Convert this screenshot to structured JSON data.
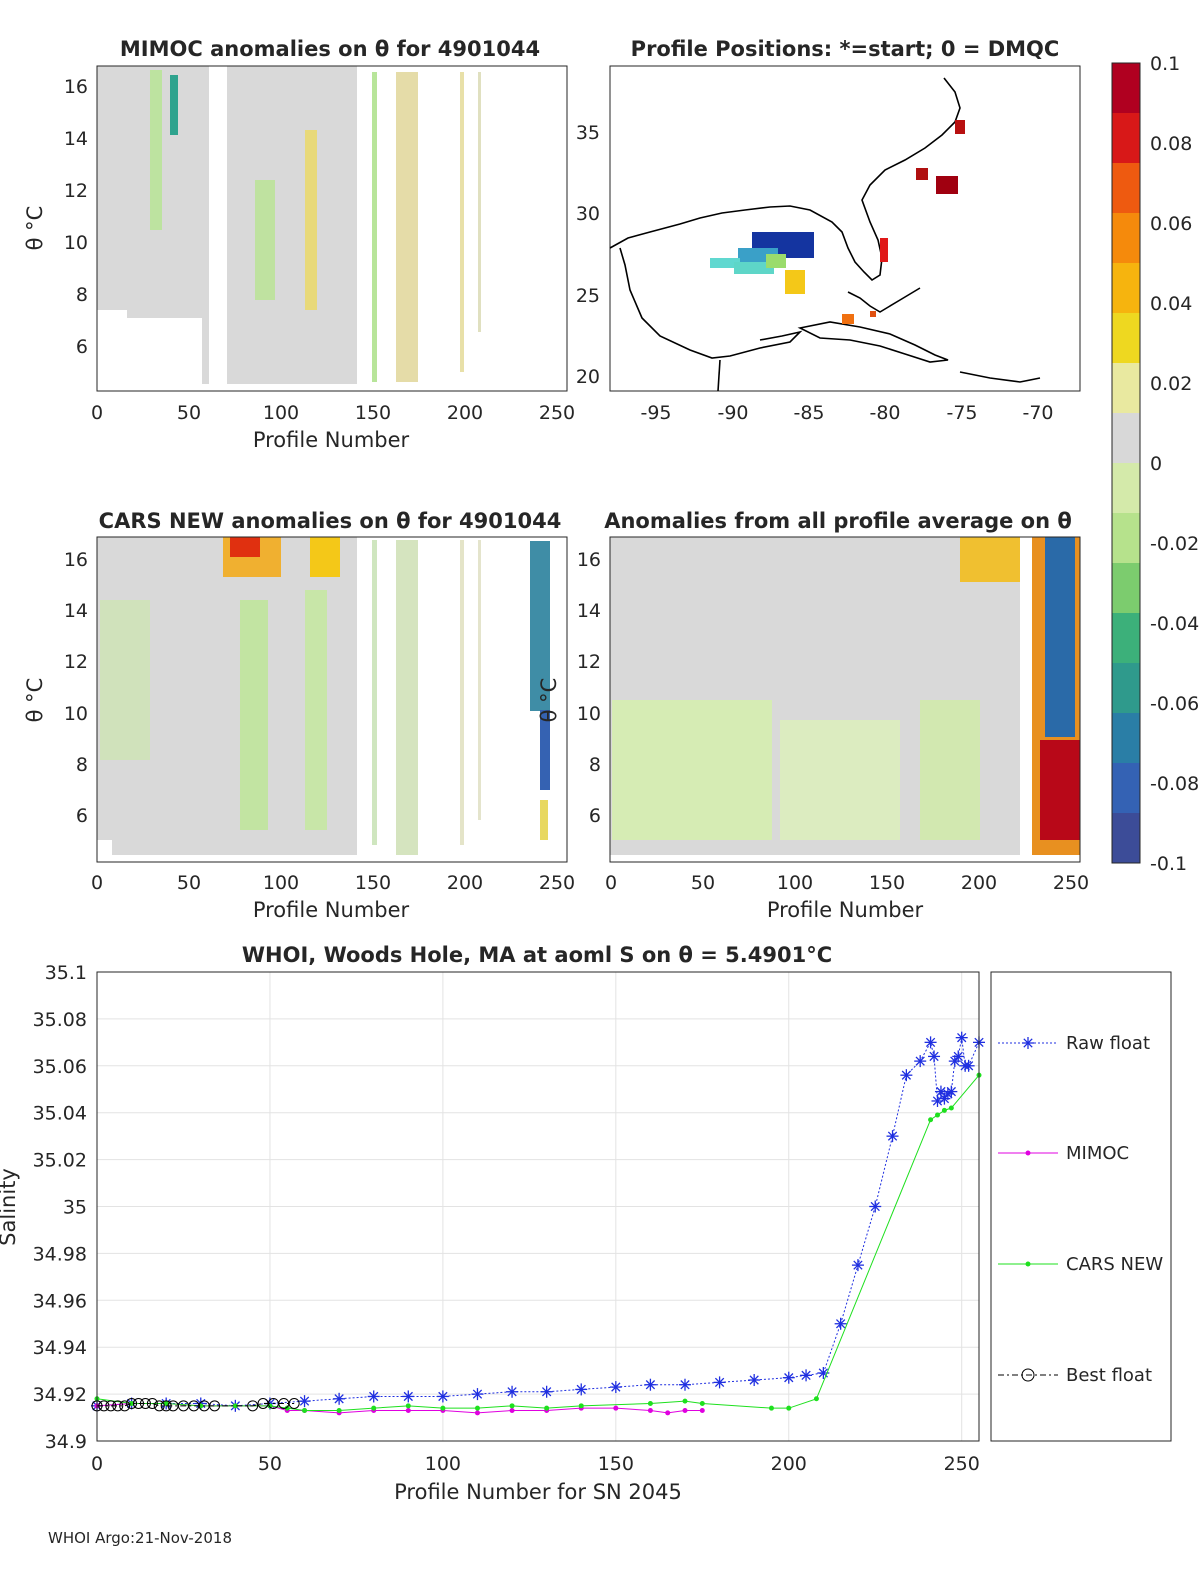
{
  "figure": {
    "footer": "WHOI Argo:21-Nov-2018"
  },
  "panels": {
    "mimoc": {
      "title": "MIMOC anomalies on θ  for 4901044",
      "xlabel": "Profile Number",
      "ylabel": "θ °C",
      "xticks": [
        "0",
        "50",
        "100",
        "150",
        "200",
        "250"
      ],
      "yticks": [
        "6",
        "8",
        "10",
        "12",
        "14",
        "16"
      ]
    },
    "positions": {
      "title": "Profile Positions: *=start; 0 = DMQC",
      "xticks": [
        "-95",
        "-90",
        "-85",
        "-80",
        "-75",
        "-70"
      ],
      "yticks": [
        "20",
        "25",
        "30",
        "35"
      ]
    },
    "cars": {
      "title": "CARS NEW anomalies on θ for 4901044",
      "xlabel": "Profile Number",
      "ylabel": "θ °C",
      "xticks": [
        "0",
        "50",
        "100",
        "150",
        "200",
        "250"
      ],
      "yticks": [
        "6",
        "8",
        "10",
        "12",
        "14",
        "16"
      ]
    },
    "avg": {
      "title": "Anomalies from all profile average on θ",
      "xlabel": "Profile Number",
      "ylabel": "θ °C",
      "xticks": [
        "0",
        "50",
        "100",
        "150",
        "200",
        "250"
      ],
      "yticks": [
        "6",
        "8",
        "10",
        "12",
        "14",
        "16"
      ]
    }
  },
  "colorbar": {
    "ticks": [
      "0.1",
      "0.08",
      "0.06",
      "0.04",
      "0.02",
      "0",
      "-0.02",
      "-0.04",
      "-0.06",
      "-0.08",
      "-0.1"
    ],
    "colors": [
      "#b00020",
      "#d81818",
      "#ee5a10",
      "#f58a0c",
      "#f6b40e",
      "#eed820",
      "#e9e9a0",
      "#d8d8d8",
      "#d4eaaa",
      "#b6e28c",
      "#7ccc6e",
      "#3cb07a",
      "#2f9a8c",
      "#2a7ea6",
      "#3462b4",
      "#3c4c98"
    ]
  },
  "chart_data": {
    "type": "line",
    "title": "WHOI, Woods Hole, MA at aoml S on θ = 5.4901°C",
    "xlabel": "Profile Number for SN 2045",
    "ylabel": "Salinity",
    "xlim": [
      0,
      255
    ],
    "ylim": [
      34.9,
      35.1
    ],
    "xticks": [
      0,
      50,
      100,
      150,
      200,
      250
    ],
    "yticks": [
      34.9,
      34.92,
      34.94,
      34.96,
      34.98,
      35,
      35.02,
      35.04,
      35.06,
      35.08,
      35.1
    ],
    "ytick_labels": [
      "34.9",
      "34.92",
      "34.94",
      "34.96",
      "34.98",
      "35",
      "35.02",
      "35.04",
      "35.06",
      "35.08",
      "35.1"
    ],
    "grid": true,
    "legend": "right",
    "series": [
      {
        "name": "Raw float",
        "color": "#1f2fe0",
        "x": [
          0,
          10,
          20,
          30,
          40,
          50,
          60,
          70,
          80,
          90,
          100,
          110,
          120,
          130,
          140,
          150,
          160,
          170,
          180,
          190,
          200,
          205,
          210,
          215,
          220,
          225,
          230,
          234,
          238,
          241,
          242,
          243,
          244,
          245,
          246,
          247,
          248,
          249,
          250,
          251,
          252,
          255
        ],
        "y": [
          34.915,
          34.916,
          34.916,
          34.916,
          34.915,
          34.916,
          34.917,
          34.918,
          34.919,
          34.919,
          34.919,
          34.92,
          34.921,
          34.921,
          34.922,
          34.923,
          34.924,
          34.924,
          34.925,
          34.926,
          34.927,
          34.928,
          34.929,
          34.95,
          34.975,
          35.0,
          35.03,
          35.056,
          35.062,
          35.07,
          35.064,
          35.045,
          35.049,
          35.046,
          35.048,
          35.049,
          35.062,
          35.064,
          35.072,
          35.06,
          35.06,
          35.07
        ]
      },
      {
        "name": "MIMOC",
        "color": "#e000e0",
        "x": [
          0,
          10,
          20,
          30,
          40,
          50,
          55,
          60,
          70,
          80,
          90,
          100,
          110,
          120,
          130,
          140,
          150,
          160,
          165,
          170,
          175
        ],
        "y": [
          34.915,
          34.916,
          34.916,
          34.915,
          34.915,
          34.915,
          34.913,
          34.913,
          34.912,
          34.913,
          34.913,
          34.913,
          34.912,
          34.913,
          34.913,
          34.914,
          34.914,
          34.913,
          34.912,
          34.913,
          34.913
        ]
      },
      {
        "name": "CARS NEW",
        "color": "#1ee01e",
        "x": [
          0,
          10,
          20,
          30,
          40,
          50,
          55,
          60,
          70,
          80,
          90,
          100,
          110,
          120,
          130,
          140,
          160,
          170,
          175,
          195,
          200,
          208,
          241,
          243,
          245,
          247,
          255
        ],
        "y": [
          34.918,
          34.916,
          34.916,
          34.915,
          34.915,
          34.915,
          34.914,
          34.913,
          34.913,
          34.914,
          34.915,
          34.914,
          34.914,
          34.915,
          34.914,
          34.915,
          34.916,
          34.917,
          34.916,
          34.914,
          34.914,
          34.918,
          35.037,
          35.039,
          35.041,
          35.042,
          35.056
        ]
      },
      {
        "name": "Best float",
        "color": "#000000",
        "x": [
          0,
          2,
          4,
          6,
          8,
          10,
          12,
          14,
          16,
          18,
          20,
          22,
          25,
          28,
          31,
          34,
          45,
          48,
          51,
          54,
          57
        ],
        "y": [
          34.915,
          34.915,
          34.915,
          34.915,
          34.915,
          34.916,
          34.916,
          34.916,
          34.916,
          34.915,
          34.915,
          34.915,
          34.915,
          34.915,
          34.915,
          34.915,
          34.915,
          34.916,
          34.916,
          34.916,
          34.916
        ]
      }
    ]
  }
}
